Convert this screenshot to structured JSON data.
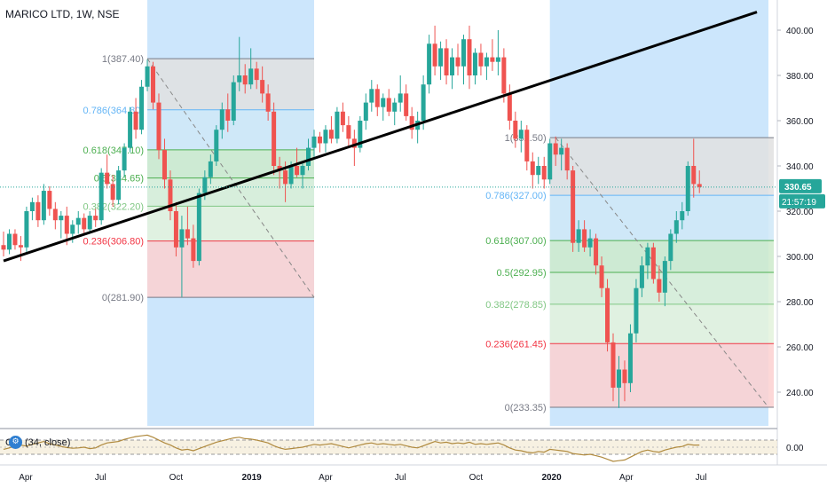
{
  "header": {
    "title": "MARICO LTD, 1W, NSE"
  },
  "oscillator": {
    "label": "CCI (34, close)",
    "badge_icon": "settings-badge-icon",
    "axis_label": "0.00"
  },
  "price_tags": {
    "last_price": "330.65",
    "countdown": "21:57:19",
    "last_price_color": "#26a69a",
    "countdown_color": "#26a69a"
  },
  "colors": {
    "up": "#26a69a",
    "down": "#ef5350",
    "trendline": "#000000",
    "cci": "#b08a3e",
    "shade_blue": "#bbdefb"
  },
  "chart_data": {
    "type": "candlestick",
    "title": "MARICO LTD, 1W, NSE",
    "ylim": [
      225,
      410
    ],
    "y_ticks": [
      "240.00",
      "260.00",
      "280.00",
      "300.00",
      "320.00",
      "340.00",
      "360.00",
      "380.00",
      "400.00"
    ],
    "x_ticks": [
      "Apr",
      "Jul",
      "Oct",
      "2019",
      "Apr",
      "Jul",
      "Oct",
      "2020",
      "Apr",
      "Jul"
    ],
    "x_range": [
      "2018-03-05",
      "2020-09-21"
    ],
    "last_price": 330.65,
    "candles": [
      {
        "w": "2018-03-05",
        "o": 305,
        "h": 311,
        "l": 300,
        "c": 303
      },
      {
        "w": "2018-03-12",
        "o": 303,
        "h": 312,
        "l": 301,
        "c": 310
      },
      {
        "w": "2018-03-19",
        "o": 310,
        "h": 312,
        "l": 303,
        "c": 305
      },
      {
        "w": "2018-03-26",
        "o": 305,
        "h": 309,
        "l": 298,
        "c": 304
      },
      {
        "w": "2018-04-02",
        "o": 304,
        "h": 322,
        "l": 302,
        "c": 320
      },
      {
        "w": "2018-04-09",
        "o": 320,
        "h": 326,
        "l": 316,
        "c": 324
      },
      {
        "w": "2018-04-16",
        "o": 324,
        "h": 327,
        "l": 313,
        "c": 316
      },
      {
        "w": "2018-04-23",
        "o": 316,
        "h": 332,
        "l": 314,
        "c": 329
      },
      {
        "w": "2018-04-30",
        "o": 329,
        "h": 331,
        "l": 318,
        "c": 321
      },
      {
        "w": "2018-05-07",
        "o": 321,
        "h": 324,
        "l": 312,
        "c": 316
      },
      {
        "w": "2018-05-14",
        "o": 316,
        "h": 320,
        "l": 308,
        "c": 318
      },
      {
        "w": "2018-05-21",
        "o": 318,
        "h": 322,
        "l": 305,
        "c": 310
      },
      {
        "w": "2018-05-28",
        "o": 310,
        "h": 316,
        "l": 306,
        "c": 314
      },
      {
        "w": "2018-06-04",
        "o": 314,
        "h": 320,
        "l": 310,
        "c": 317
      },
      {
        "w": "2018-06-11",
        "o": 317,
        "h": 319,
        "l": 310,
        "c": 312
      },
      {
        "w": "2018-06-18",
        "o": 312,
        "h": 320,
        "l": 310,
        "c": 318
      },
      {
        "w": "2018-06-25",
        "o": 318,
        "h": 321,
        "l": 313,
        "c": 316
      },
      {
        "w": "2018-07-02",
        "o": 316,
        "h": 339,
        "l": 314,
        "c": 337
      },
      {
        "w": "2018-07-09",
        "o": 337,
        "h": 345,
        "l": 330,
        "c": 332
      },
      {
        "w": "2018-07-16",
        "o": 332,
        "h": 336,
        "l": 322,
        "c": 325
      },
      {
        "w": "2018-07-23",
        "o": 325,
        "h": 340,
        "l": 323,
        "c": 338
      },
      {
        "w": "2018-07-30",
        "o": 338,
        "h": 350,
        "l": 335,
        "c": 348
      },
      {
        "w": "2018-08-06",
        "o": 348,
        "h": 366,
        "l": 346,
        "c": 364
      },
      {
        "w": "2018-08-13",
        "o": 364,
        "h": 370,
        "l": 352,
        "c": 356
      },
      {
        "w": "2018-08-20",
        "o": 356,
        "h": 378,
        "l": 354,
        "c": 375
      },
      {
        "w": "2018-08-27",
        "o": 375,
        "h": 387,
        "l": 373,
        "c": 384
      },
      {
        "w": "2018-09-03",
        "o": 384,
        "h": 386,
        "l": 365,
        "c": 368
      },
      {
        "w": "2018-09-10",
        "o": 368,
        "h": 372,
        "l": 343,
        "c": 347
      },
      {
        "w": "2018-09-17",
        "o": 347,
        "h": 352,
        "l": 330,
        "c": 334
      },
      {
        "w": "2018-09-24",
        "o": 334,
        "h": 338,
        "l": 316,
        "c": 320
      },
      {
        "w": "2018-10-01",
        "o": 320,
        "h": 324,
        "l": 300,
        "c": 304
      },
      {
        "w": "2018-10-08",
        "o": 304,
        "h": 318,
        "l": 282,
        "c": 312
      },
      {
        "w": "2018-10-15",
        "o": 312,
        "h": 322,
        "l": 305,
        "c": 308
      },
      {
        "w": "2018-10-22",
        "o": 308,
        "h": 314,
        "l": 295,
        "c": 298
      },
      {
        "w": "2018-10-29",
        "o": 298,
        "h": 330,
        "l": 296,
        "c": 328
      },
      {
        "w": "2018-11-05",
        "o": 328,
        "h": 338,
        "l": 325,
        "c": 335
      },
      {
        "w": "2018-11-12",
        "o": 335,
        "h": 345,
        "l": 332,
        "c": 342
      },
      {
        "w": "2018-11-19",
        "o": 342,
        "h": 358,
        "l": 340,
        "c": 356
      },
      {
        "w": "2018-11-26",
        "o": 356,
        "h": 368,
        "l": 352,
        "c": 365
      },
      {
        "w": "2018-12-03",
        "o": 365,
        "h": 372,
        "l": 355,
        "c": 360
      },
      {
        "w": "2018-12-10",
        "o": 360,
        "h": 380,
        "l": 358,
        "c": 377
      },
      {
        "w": "2018-12-17",
        "o": 377,
        "h": 397,
        "l": 373,
        "c": 380
      },
      {
        "w": "2018-12-24",
        "o": 380,
        "h": 385,
        "l": 372,
        "c": 376
      },
      {
        "w": "2018-12-31",
        "o": 376,
        "h": 392,
        "l": 374,
        "c": 383
      },
      {
        "w": "2019-01-07",
        "o": 383,
        "h": 386,
        "l": 374,
        "c": 378
      },
      {
        "w": "2019-01-14",
        "o": 378,
        "h": 384,
        "l": 368,
        "c": 372
      },
      {
        "w": "2019-01-21",
        "o": 372,
        "h": 376,
        "l": 360,
        "c": 364
      },
      {
        "w": "2019-01-28",
        "o": 364,
        "h": 368,
        "l": 336,
        "c": 340
      },
      {
        "w": "2019-02-04",
        "o": 340,
        "h": 344,
        "l": 330,
        "c": 338
      },
      {
        "w": "2019-02-11",
        "o": 338,
        "h": 342,
        "l": 324,
        "c": 332
      },
      {
        "w": "2019-02-18",
        "o": 332,
        "h": 342,
        "l": 330,
        "c": 340
      },
      {
        "w": "2019-02-25",
        "o": 340,
        "h": 348,
        "l": 335,
        "c": 336
      },
      {
        "w": "2019-03-04",
        "o": 336,
        "h": 342,
        "l": 330,
        "c": 340
      },
      {
        "w": "2019-03-11",
        "o": 340,
        "h": 352,
        "l": 338,
        "c": 348
      },
      {
        "w": "2019-03-18",
        "o": 348,
        "h": 356,
        "l": 344,
        "c": 353
      },
      {
        "w": "2019-03-25",
        "o": 353,
        "h": 355,
        "l": 346,
        "c": 350
      },
      {
        "w": "2019-04-01",
        "o": 350,
        "h": 358,
        "l": 346,
        "c": 356
      },
      {
        "w": "2019-04-08",
        "o": 356,
        "h": 362,
        "l": 350,
        "c": 352
      },
      {
        "w": "2019-04-15",
        "o": 352,
        "h": 366,
        "l": 350,
        "c": 364
      },
      {
        "w": "2019-04-22",
        "o": 364,
        "h": 368,
        "l": 355,
        "c": 358
      },
      {
        "w": "2019-04-29",
        "o": 358,
        "h": 362,
        "l": 348,
        "c": 352
      },
      {
        "w": "2019-05-06",
        "o": 352,
        "h": 356,
        "l": 340,
        "c": 348
      },
      {
        "w": "2019-05-13",
        "o": 348,
        "h": 362,
        "l": 346,
        "c": 360
      },
      {
        "w": "2019-05-20",
        "o": 360,
        "h": 372,
        "l": 356,
        "c": 368
      },
      {
        "w": "2019-05-27",
        "o": 368,
        "h": 378,
        "l": 364,
        "c": 374
      },
      {
        "w": "2019-06-03",
        "o": 374,
        "h": 376,
        "l": 362,
        "c": 366
      },
      {
        "w": "2019-06-10",
        "o": 366,
        "h": 372,
        "l": 360,
        "c": 370
      },
      {
        "w": "2019-06-17",
        "o": 370,
        "h": 374,
        "l": 362,
        "c": 364
      },
      {
        "w": "2019-06-24",
        "o": 364,
        "h": 370,
        "l": 358,
        "c": 368
      },
      {
        "w": "2019-07-01",
        "o": 368,
        "h": 380,
        "l": 364,
        "c": 372
      },
      {
        "w": "2019-07-08",
        "o": 372,
        "h": 376,
        "l": 360,
        "c": 362
      },
      {
        "w": "2019-07-15",
        "o": 362,
        "h": 366,
        "l": 352,
        "c": 356
      },
      {
        "w": "2019-07-22",
        "o": 356,
        "h": 364,
        "l": 350,
        "c": 360
      },
      {
        "w": "2019-07-29",
        "o": 360,
        "h": 380,
        "l": 356,
        "c": 376
      },
      {
        "w": "2019-08-05",
        "o": 376,
        "h": 398,
        "l": 372,
        "c": 394
      },
      {
        "w": "2019-08-12",
        "o": 394,
        "h": 402,
        "l": 380,
        "c": 384
      },
      {
        "w": "2019-08-19",
        "o": 384,
        "h": 395,
        "l": 378,
        "c": 392
      },
      {
        "w": "2019-08-26",
        "o": 392,
        "h": 396,
        "l": 376,
        "c": 380
      },
      {
        "w": "2019-09-02",
        "o": 380,
        "h": 392,
        "l": 374,
        "c": 388
      },
      {
        "w": "2019-09-09",
        "o": 388,
        "h": 394,
        "l": 380,
        "c": 384
      },
      {
        "w": "2019-09-16",
        "o": 384,
        "h": 398,
        "l": 376,
        "c": 396
      },
      {
        "w": "2019-09-23",
        "o": 396,
        "h": 402,
        "l": 374,
        "c": 380
      },
      {
        "w": "2019-09-30",
        "o": 380,
        "h": 392,
        "l": 376,
        "c": 390
      },
      {
        "w": "2019-10-07",
        "o": 390,
        "h": 394,
        "l": 380,
        "c": 384
      },
      {
        "w": "2019-10-14",
        "o": 384,
        "h": 390,
        "l": 378,
        "c": 388
      },
      {
        "w": "2019-10-21",
        "o": 388,
        "h": 396,
        "l": 382,
        "c": 386
      },
      {
        "w": "2019-10-28",
        "o": 386,
        "h": 400,
        "l": 380,
        "c": 388
      },
      {
        "w": "2019-11-04",
        "o": 388,
        "h": 392,
        "l": 368,
        "c": 372
      },
      {
        "w": "2019-11-11",
        "o": 372,
        "h": 376,
        "l": 356,
        "c": 360
      },
      {
        "w": "2019-11-18",
        "o": 360,
        "h": 364,
        "l": 348,
        "c": 352
      },
      {
        "w": "2019-11-25",
        "o": 352,
        "h": 360,
        "l": 346,
        "c": 356
      },
      {
        "w": "2019-12-02",
        "o": 356,
        "h": 358,
        "l": 338,
        "c": 342
      },
      {
        "w": "2019-12-09",
        "o": 342,
        "h": 346,
        "l": 330,
        "c": 336
      },
      {
        "w": "2019-12-16",
        "o": 336,
        "h": 344,
        "l": 332,
        "c": 340
      },
      {
        "w": "2019-12-23",
        "o": 340,
        "h": 344,
        "l": 330,
        "c": 334
      },
      {
        "w": "2019-12-30",
        "o": 334,
        "h": 352,
        "l": 332,
        "c": 350
      },
      {
        "w": "2020-01-06",
        "o": 350,
        "h": 353,
        "l": 340,
        "c": 345
      },
      {
        "w": "2020-01-13",
        "o": 345,
        "h": 352,
        "l": 338,
        "c": 348
      },
      {
        "w": "2020-01-20",
        "o": 348,
        "h": 350,
        "l": 334,
        "c": 338
      },
      {
        "w": "2020-01-27",
        "o": 338,
        "h": 340,
        "l": 302,
        "c": 306
      },
      {
        "w": "2020-02-03",
        "o": 306,
        "h": 316,
        "l": 302,
        "c": 312
      },
      {
        "w": "2020-02-10",
        "o": 312,
        "h": 316,
        "l": 302,
        "c": 304
      },
      {
        "w": "2020-02-17",
        "o": 304,
        "h": 312,
        "l": 300,
        "c": 308
      },
      {
        "w": "2020-02-24",
        "o": 308,
        "h": 310,
        "l": 292,
        "c": 296
      },
      {
        "w": "2020-03-02",
        "o": 296,
        "h": 300,
        "l": 282,
        "c": 286
      },
      {
        "w": "2020-03-09",
        "o": 286,
        "h": 290,
        "l": 258,
        "c": 262
      },
      {
        "w": "2020-03-16",
        "o": 262,
        "h": 266,
        "l": 236,
        "c": 242
      },
      {
        "w": "2020-03-23",
        "o": 242,
        "h": 256,
        "l": 233,
        "c": 250
      },
      {
        "w": "2020-03-30",
        "o": 250,
        "h": 254,
        "l": 236,
        "c": 244
      },
      {
        "w": "2020-04-06",
        "o": 244,
        "h": 270,
        "l": 240,
        "c": 266
      },
      {
        "w": "2020-04-13",
        "o": 266,
        "h": 290,
        "l": 262,
        "c": 286
      },
      {
        "w": "2020-04-20",
        "o": 286,
        "h": 300,
        "l": 282,
        "c": 296
      },
      {
        "w": "2020-04-27",
        "o": 296,
        "h": 306,
        "l": 290,
        "c": 304
      },
      {
        "w": "2020-05-04",
        "o": 304,
        "h": 306,
        "l": 288,
        "c": 290
      },
      {
        "w": "2020-05-11",
        "o": 290,
        "h": 296,
        "l": 280,
        "c": 284
      },
      {
        "w": "2020-05-18",
        "o": 284,
        "h": 300,
        "l": 278,
        "c": 298
      },
      {
        "w": "2020-05-25",
        "o": 298,
        "h": 312,
        "l": 294,
        "c": 310
      },
      {
        "w": "2020-06-01",
        "o": 310,
        "h": 320,
        "l": 306,
        "c": 316
      },
      {
        "w": "2020-06-08",
        "o": 316,
        "h": 324,
        "l": 312,
        "c": 320
      },
      {
        "w": "2020-06-15",
        "o": 320,
        "h": 342,
        "l": 318,
        "c": 340
      },
      {
        "w": "2020-06-22",
        "o": 340,
        "h": 352,
        "l": 326,
        "c": 332
      },
      {
        "w": "2020-06-29",
        "o": 332,
        "h": 338,
        "l": 328,
        "c": 330.65
      }
    ],
    "shaded_regions": [
      {
        "from": "2018-08-27",
        "to": "2019-03-18"
      },
      {
        "from": "2019-12-30",
        "to": "2020-09-21"
      }
    ],
    "trendline": {
      "from": {
        "date": "2018-03-05",
        "price": 298
      },
      "to": {
        "date": "2020-09-07",
        "price": 408
      }
    },
    "fibonacci": [
      {
        "from": "2018-08-27",
        "to": "2019-03-18",
        "levels": [
          {
            "label": "1(387.40)",
            "value": 387.4,
            "color": "#787b86"
          },
          {
            "label": "0.786(364.80)",
            "value": 364.8,
            "color": "#64b5f6"
          },
          {
            "label": "0.618(347.10)",
            "value": 347.1,
            "color": "#4caf50"
          },
          {
            "label": "0.5(334.65)",
            "value": 334.65,
            "color": "#4caf50"
          },
          {
            "label": "0.382(322.20)",
            "value": 322.2,
            "color": "#81c784"
          },
          {
            "label": "0.236(306.80)",
            "value": 306.8,
            "color": "#f23645"
          },
          {
            "label": "0(281.90)",
            "value": 281.9,
            "color": "#787b86"
          }
        ],
        "diagonal": {
          "from": {
            "date": "2018-08-27",
            "price": 387.4
          },
          "to": {
            "date": "2019-03-18",
            "price": 281.9
          }
        }
      },
      {
        "from": "2019-12-30",
        "to": "2020-06-15",
        "levels": [
          {
            "label": "1(352.50)",
            "value": 352.5,
            "color": "#787b86"
          },
          {
            "label": "0.786(327.00)",
            "value": 327.0,
            "color": "#64b5f6"
          },
          {
            "label": "0.618(307.00)",
            "value": 307.0,
            "color": "#4caf50"
          },
          {
            "label": "0.5(292.95)",
            "value": 292.95,
            "color": "#4caf50"
          },
          {
            "label": "0.382(278.85)",
            "value": 278.85,
            "color": "#81c784"
          },
          {
            "label": "0.236(261.45)",
            "value": 261.45,
            "color": "#f23645"
          },
          {
            "label": "0(233.35)",
            "value": 233.35,
            "color": "#787b86"
          }
        ],
        "extend_right": true,
        "diagonal": {
          "from": {
            "date": "2020-01-06",
            "price": 352.5
          },
          "to": {
            "date": "2020-09-21",
            "price": 233.35
          }
        }
      }
    ],
    "cci": {
      "label": "CCI (34, close)",
      "ylim": [
        -200,
        200
      ],
      "bands": [
        100,
        -100
      ],
      "values": [
        -30,
        -10,
        20,
        30,
        15,
        40,
        60,
        80,
        50,
        30,
        10,
        -5,
        -15,
        -10,
        0,
        -20,
        -10,
        30,
        60,
        70,
        80,
        110,
        130,
        150,
        160,
        170,
        140,
        100,
        60,
        30,
        -10,
        -40,
        -30,
        -50,
        -20,
        10,
        40,
        70,
        90,
        110,
        130,
        140,
        120,
        115,
        100,
        80,
        60,
        20,
        -10,
        -30,
        -20,
        -10,
        0,
        20,
        40,
        30,
        40,
        50,
        30,
        10,
        -10,
        10,
        30,
        50,
        60,
        40,
        50,
        40,
        30,
        40,
        20,
        0,
        -10,
        20,
        50,
        80,
        60,
        70,
        50,
        60,
        50,
        70,
        40,
        50,
        40,
        50,
        60,
        30,
        -10,
        -40,
        -50,
        -70,
        -80,
        -60,
        -70,
        -30,
        -40,
        -50,
        -60,
        -90,
        -100,
        -110,
        -100,
        -120,
        -140,
        -170,
        -200,
        -190,
        -180,
        -140,
        -100,
        -60,
        -40,
        -60,
        -70,
        -40,
        -20,
        0,
        10,
        40,
        30,
        30
      ]
    }
  }
}
